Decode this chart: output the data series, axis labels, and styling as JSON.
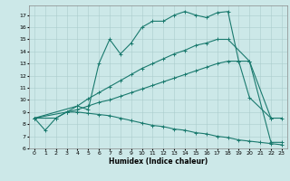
{
  "xlabel": "Humidex (Indice chaleur)",
  "bg_color": "#cce8e8",
  "line_color": "#1a7a6e",
  "xlim": [
    -0.5,
    23.5
  ],
  "ylim": [
    6,
    17.8
  ],
  "xticks": [
    0,
    1,
    2,
    3,
    4,
    5,
    6,
    7,
    8,
    9,
    10,
    11,
    12,
    13,
    14,
    15,
    16,
    17,
    18,
    19,
    20,
    21,
    22,
    23
  ],
  "yticks": [
    6,
    7,
    8,
    9,
    10,
    11,
    12,
    13,
    14,
    15,
    16,
    17
  ],
  "line1_x": [
    0,
    1,
    2,
    3,
    4,
    5,
    6,
    7,
    8,
    9,
    10,
    11,
    12,
    13,
    14,
    15,
    16,
    17,
    18,
    19,
    20,
    22
  ],
  "line1_y": [
    8.5,
    7.5,
    8.5,
    9.0,
    9.5,
    9.2,
    13.0,
    15.0,
    13.8,
    14.7,
    16.0,
    16.5,
    16.5,
    17.0,
    17.3,
    17.0,
    16.8,
    17.2,
    17.3,
    13.2,
    10.2,
    8.5
  ],
  "line2_x": [
    0,
    3,
    4,
    5,
    6,
    7,
    8,
    9,
    10,
    11,
    12,
    13,
    14,
    15,
    16,
    17,
    18,
    19,
    20,
    22,
    23
  ],
  "line2_y": [
    8.5,
    9.0,
    9.2,
    9.5,
    9.8,
    10.0,
    10.3,
    10.6,
    10.9,
    11.2,
    11.5,
    11.8,
    12.1,
    12.4,
    12.7,
    13.0,
    13.2,
    13.2,
    13.2,
    8.5,
    8.5
  ],
  "line3_x": [
    0,
    4,
    5,
    6,
    7,
    8,
    9,
    10,
    11,
    12,
    13,
    14,
    15,
    16,
    17,
    18,
    20,
    22,
    23
  ],
  "line3_y": [
    8.5,
    9.5,
    10.1,
    10.6,
    11.1,
    11.6,
    12.1,
    12.6,
    13.0,
    13.4,
    13.8,
    14.1,
    14.5,
    14.7,
    15.0,
    15.0,
    13.2,
    6.5,
    6.5
  ],
  "line4_x": [
    0,
    2,
    3,
    4,
    5,
    6,
    7,
    8,
    9,
    10,
    11,
    12,
    13,
    14,
    15,
    16,
    17,
    18,
    19,
    20,
    21,
    22,
    23
  ],
  "line4_y": [
    8.5,
    8.5,
    9.0,
    9.0,
    8.9,
    8.8,
    8.7,
    8.5,
    8.3,
    8.1,
    7.9,
    7.8,
    7.6,
    7.5,
    7.3,
    7.2,
    7.0,
    6.9,
    6.7,
    6.6,
    6.5,
    6.4,
    6.3
  ]
}
